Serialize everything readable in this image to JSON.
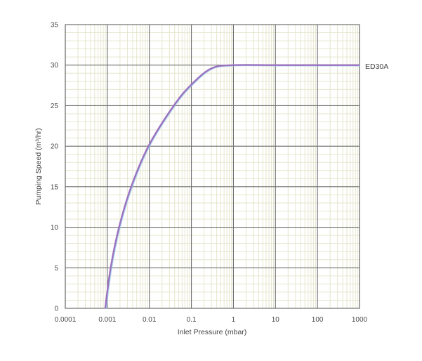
{
  "chart_data": {
    "type": "line",
    "title": "",
    "xlabel": "Inlet Pressure (mbar)",
    "ylabel": "Pumping Speed (m³/hr)",
    "xscale": "log",
    "xlim": [
      0.0001,
      1000
    ],
    "ylim": [
      0,
      35
    ],
    "x_ticks": [
      "0.0001",
      "0.001",
      "0.01",
      "0.1",
      "1",
      "10",
      "100",
      "1000"
    ],
    "y_ticks": [
      "0",
      "5",
      "10",
      "15",
      "20",
      "25",
      "30",
      "35"
    ],
    "grid": true,
    "legend_position": "inline-right",
    "series": [
      {
        "name": "ED30A",
        "color": "#9b72c0",
        "x": [
          0.00089,
          0.0012,
          0.0019,
          0.0037,
          0.0095,
          0.038,
          0.1,
          0.3,
          1,
          10,
          100,
          1000
        ],
        "y": [
          0,
          5,
          10,
          15,
          20,
          25,
          27.6,
          29.6,
          30,
          30,
          30,
          30
        ]
      }
    ]
  },
  "colors": {
    "major_grid": "#6e6e6e",
    "minor_grid": "#e6e6cf",
    "curve": "#9b72c0",
    "curve_shadow": "#8fc6e8"
  }
}
